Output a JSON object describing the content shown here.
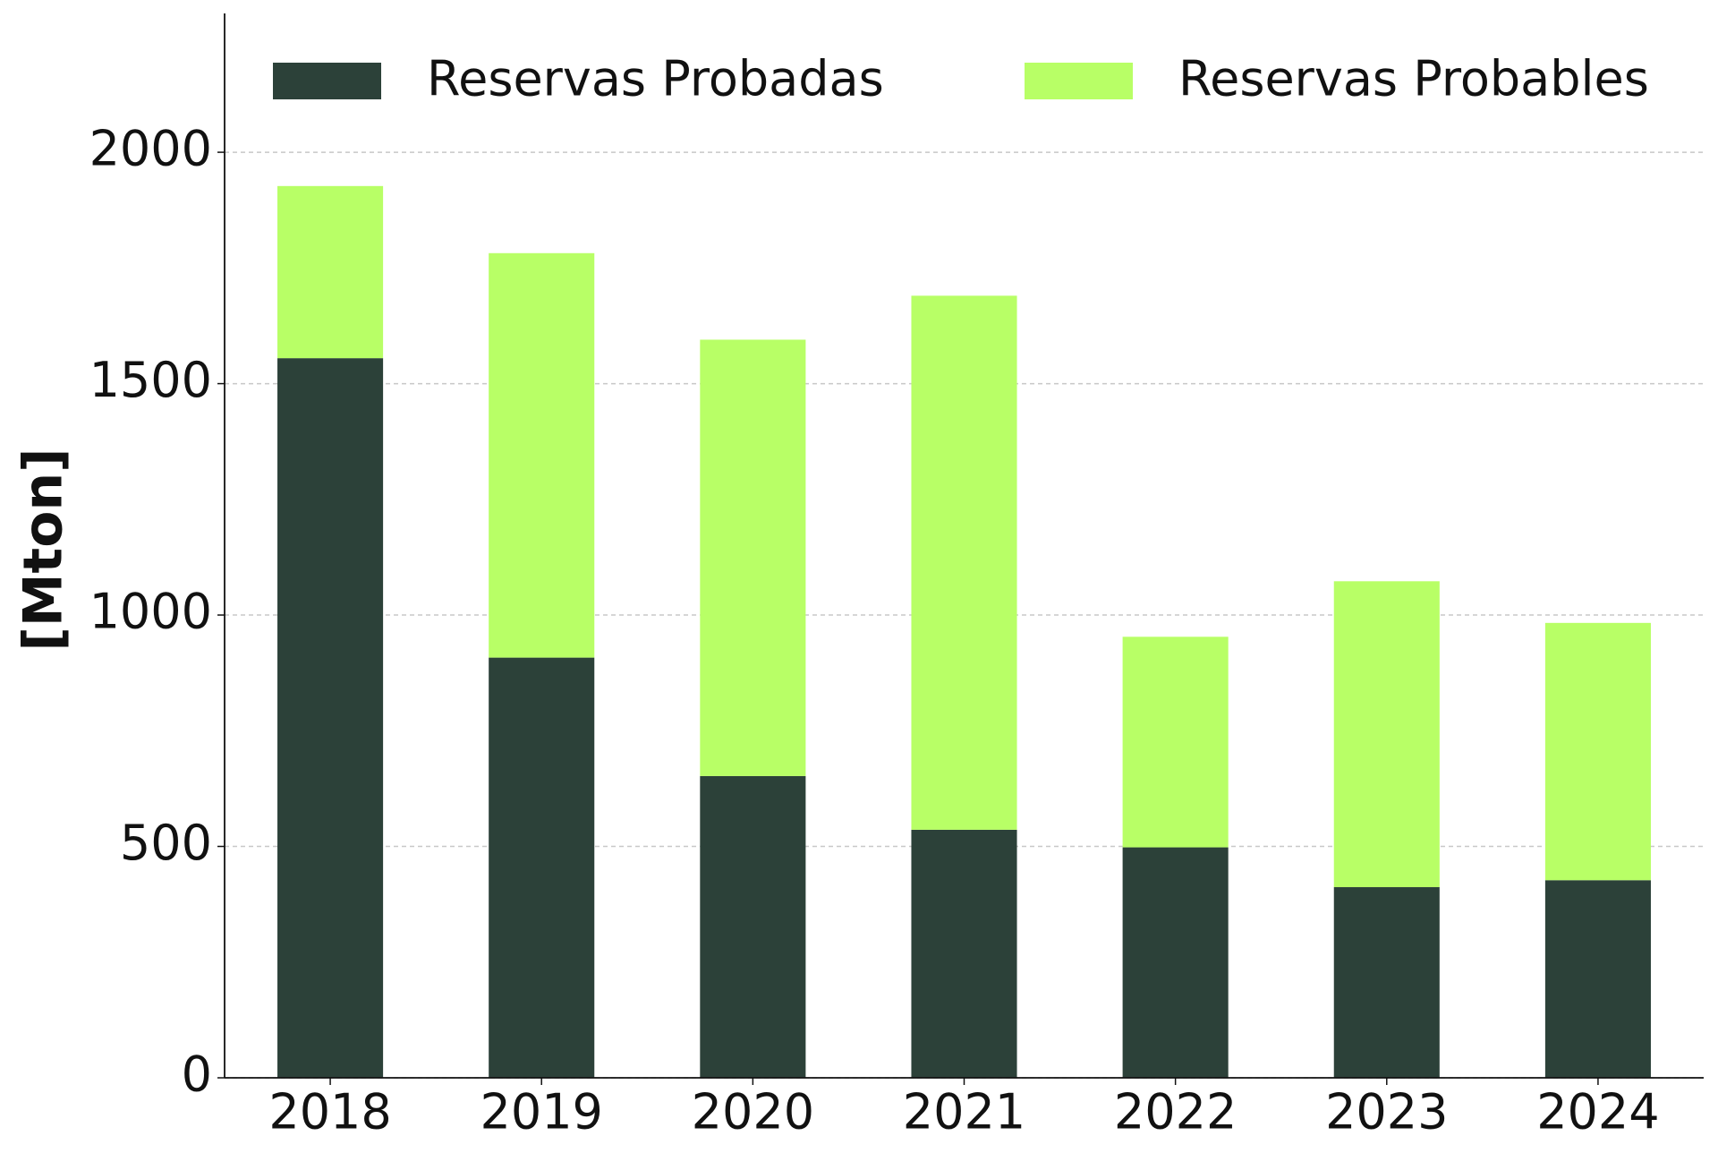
{
  "chart_data": {
    "type": "stacked_bar",
    "y_label": "[Mton]",
    "categories": [
      "2018",
      "2019",
      "2020",
      "2021",
      "2022",
      "2023",
      "2024"
    ],
    "series": [
      {
        "name": "Reservas Probadas",
        "color": "#2c4139",
        "values": [
          1555,
          908,
          652,
          536,
          498,
          412,
          427
        ]
      },
      {
        "name": "Reservas Probables",
        "color": "#b8ff66",
        "values": [
          372,
          874,
          943,
          1154,
          455,
          661,
          556
        ]
      }
    ],
    "ylim": [
      0,
      2300
    ],
    "yticks": [
      0,
      500,
      1000,
      1500,
      2000
    ],
    "grid": true,
    "legend": "upper center"
  }
}
